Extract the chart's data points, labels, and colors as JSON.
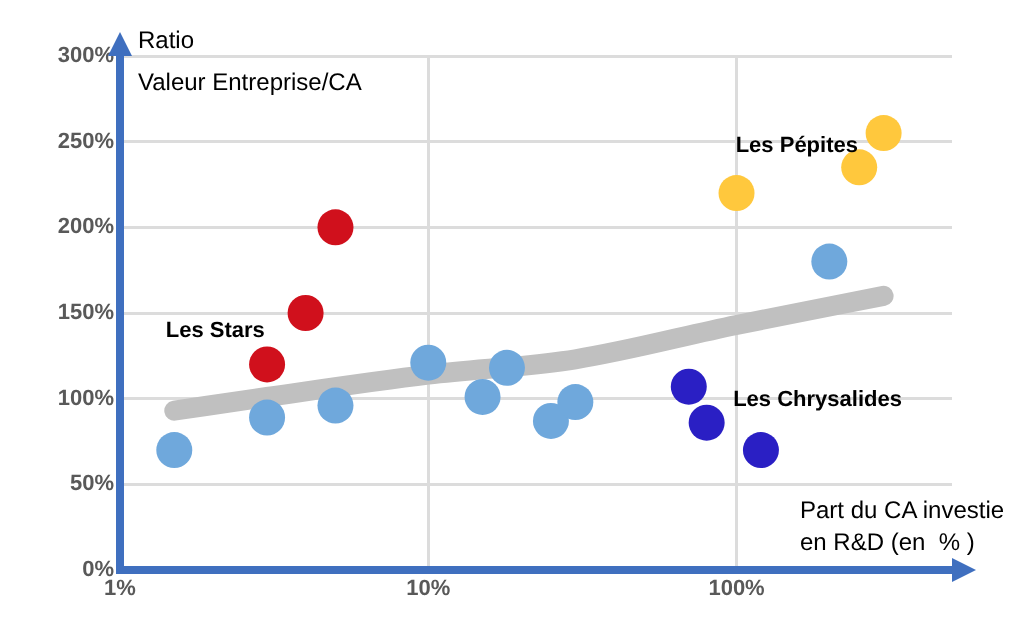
{
  "chart_data": {
    "type": "scatter",
    "xlabel": "Part du CA investie\nen R&D (en  % )",
    "ylabel": "Ratio\nValeur Entreprise/CA",
    "log": "x",
    "grid": true,
    "legend": false,
    "marker": "circle",
    "xlim": [
      1,
      500
    ],
    "xticks": [
      {
        "value": 1,
        "label": "1%"
      },
      {
        "value": 10,
        "label": "10%"
      },
      {
        "value": 100,
        "label": "100%"
      }
    ],
    "ylim": [
      0,
      300
    ],
    "yticks": [
      {
        "value": 0,
        "label": "0%"
      },
      {
        "value": 50,
        "label": "50%"
      },
      {
        "value": 100,
        "label": "100%"
      },
      {
        "value": 150,
        "label": "150%"
      },
      {
        "value": 200,
        "label": "200%"
      },
      {
        "value": 250,
        "label": "250%"
      },
      {
        "value": 300,
        "label": "300%"
      }
    ],
    "series": [
      {
        "type": "line",
        "color": "#c0c0c0",
        "marker": "none",
        "x": [
          1.5,
          3,
          10,
          30,
          100,
          300
        ],
        "values": [
          93,
          101,
          114,
          123,
          143,
          160
        ]
      },
      {
        "color": "#6fa8dc",
        "x": [
          1.5,
          3,
          5,
          10,
          15,
          18,
          25,
          30,
          200
        ],
        "values": [
          70,
          89,
          96,
          121,
          101,
          118,
          87,
          98,
          180
        ]
      },
      {
        "color": "#d0101c",
        "x": [
          3,
          4,
          5
        ],
        "values": [
          120,
          150,
          200
        ]
      },
      {
        "color": "#ffc83d",
        "x": [
          100,
          250,
          300
        ],
        "values": [
          220,
          235,
          255
        ]
      },
      {
        "color": "#2a1fc4",
        "x": [
          70,
          80,
          120
        ],
        "values": [
          107,
          86,
          70
        ]
      }
    ],
    "annotations": [
      "Les Stars",
      "Les Pépites",
      "Les Chrysalides"
    ]
  }
}
